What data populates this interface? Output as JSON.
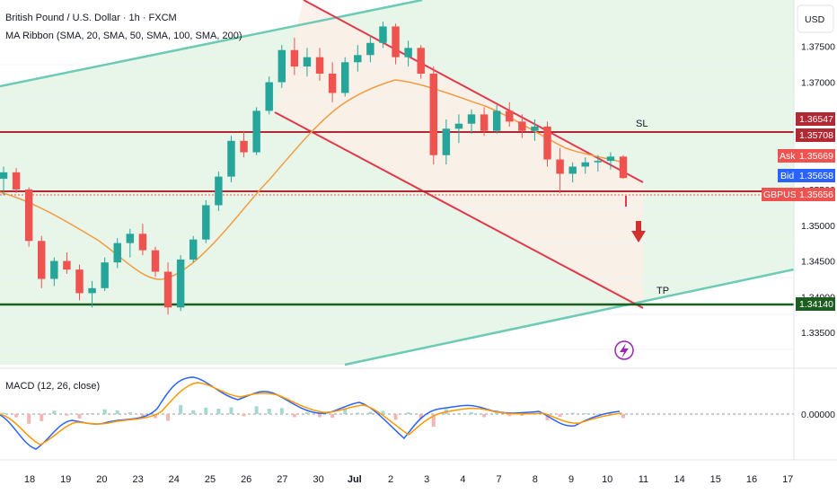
{
  "header": {
    "title": "British Pound / U.S. Dollar · 1h · FXCM",
    "indicator": "MA Ribbon (SMA, 20, SMA, 50, SMA, 100, SMA, 200)",
    "currency": "USD"
  },
  "macd": {
    "label": "MACD (12, 26, close)",
    "zero_label": "0.00000"
  },
  "colors": {
    "candle_up": "#26a69a",
    "candle_down": "#ef5350",
    "ma50": "#f39c40",
    "channel": "#e03a4a",
    "sl": "#b22833",
    "tp": "#1b5e20",
    "trend": "#6ccab5",
    "zone": "#e8f5e9",
    "macd_line": "#2962ff",
    "signal_line": "#ff9800"
  },
  "annotations": {
    "sl": "SL",
    "tp": "TP"
  },
  "tags": {
    "sl_high": "1.36547",
    "sl": "1.35708",
    "ask_label": "Ask",
    "ask": "1.35669",
    "bid_label": "Bid",
    "bid": "1.35658",
    "symbol_label": "GBPUSD",
    "last": "1.35656",
    "tp": "1.34140"
  },
  "icons": {
    "arrow": "down-arrow-icon",
    "flash": "flash-icon"
  },
  "chart_data": {
    "type": "candlestick",
    "title": "British Pound / U.S. Dollar · 1h · FXCM",
    "y_ticks": [
      1.375,
      1.37,
      1.365,
      1.36,
      1.355,
      1.35,
      1.345,
      1.34,
      1.335
    ],
    "y_tick_labels": [
      "1.37500",
      "1.37000",
      "",
      "",
      "1.35500",
      "1.35000",
      "1.34500",
      "1.34000",
      "1.33500"
    ],
    "ylim": [
      1.3305,
      1.3815
    ],
    "x_ticks": [
      "18",
      "19",
      "20",
      "23",
      "24",
      "25",
      "26",
      "27",
      "30",
      "Jul",
      "2",
      "3",
      "4",
      "7",
      "8",
      "9",
      "10",
      "11",
      "14",
      "15",
      "16",
      "17"
    ],
    "levels": {
      "sl": 1.35708,
      "tp": 1.3414,
      "last": 1.35656
    },
    "channel": {
      "upper": [
        [
          6.3,
          1.3815
        ],
        [
          16.4,
          1.3565
        ]
      ],
      "lower": [
        [
          6.8,
          1.3623
        ],
        [
          16.4,
          1.3412
        ]
      ]
    },
    "trendlines": {
      "upper": [
        [
          -0.5,
          1.3728
        ],
        [
          10.7,
          1.3817
        ]
      ],
      "lower": [
        [
          8.7,
          1.3315
        ],
        [
          21.2,
          1.3455
        ]
      ]
    },
    "candles": [
      [
        1.3565,
        1.3582,
        1.3542,
        1.3574
      ],
      [
        1.3574,
        1.358,
        1.3545,
        1.355
      ],
      [
        1.355,
        1.3553,
        1.347,
        1.3478
      ],
      [
        1.3478,
        1.3485,
        1.3412,
        1.3425
      ],
      [
        1.3425,
        1.3455,
        1.3415,
        1.345
      ],
      [
        1.345,
        1.3462,
        1.3432,
        1.3438
      ],
      [
        1.3438,
        1.3445,
        1.3395,
        1.3405
      ],
      [
        1.3405,
        1.3422,
        1.3385,
        1.3412
      ],
      [
        1.3412,
        1.3455,
        1.3408,
        1.3448
      ],
      [
        1.3448,
        1.3482,
        1.344,
        1.3475
      ],
      [
        1.3475,
        1.3495,
        1.3455,
        1.3488
      ],
      [
        1.3488,
        1.3502,
        1.3458,
        1.3465
      ],
      [
        1.3465,
        1.347,
        1.3428,
        1.3435
      ],
      [
        1.3435,
        1.3448,
        1.3375,
        1.3385
      ],
      [
        1.3385,
        1.3458,
        1.338,
        1.3452
      ],
      [
        1.3452,
        1.3485,
        1.3448,
        1.348
      ],
      [
        1.348,
        1.3535,
        1.3475,
        1.3528
      ],
      [
        1.3528,
        1.3575,
        1.352,
        1.3568
      ],
      [
        1.3568,
        1.3625,
        1.356,
        1.3618
      ],
      [
        1.3618,
        1.3632,
        1.3595,
        1.3602
      ],
      [
        1.3602,
        1.3665,
        1.3598,
        1.366
      ],
      [
        1.366,
        1.3708,
        1.3655,
        1.37
      ],
      [
        1.37,
        1.3752,
        1.3692,
        1.3745
      ],
      [
        1.3745,
        1.3762,
        1.371,
        1.3722
      ],
      [
        1.3722,
        1.3748,
        1.3708,
        1.3735
      ],
      [
        1.3735,
        1.3748,
        1.3702,
        1.3712
      ],
      [
        1.3712,
        1.3728,
        1.3672,
        1.3685
      ],
      [
        1.3685,
        1.3735,
        1.368,
        1.3728
      ],
      [
        1.3728,
        1.3752,
        1.3715,
        1.3738
      ],
      [
        1.3738,
        1.3765,
        1.3728,
        1.3755
      ],
      [
        1.3755,
        1.3785,
        1.3748,
        1.3778
      ],
      [
        1.3778,
        1.3782,
        1.3725,
        1.3735
      ],
      [
        1.3735,
        1.3758,
        1.3722,
        1.3748
      ],
      [
        1.3748,
        1.3752,
        1.3705,
        1.3712
      ],
      [
        1.3712,
        1.3722,
        1.3585,
        1.3598
      ],
      [
        1.3598,
        1.3648,
        1.3585,
        1.3635
      ],
      [
        1.3635,
        1.3655,
        1.3615,
        1.3642
      ],
      [
        1.3642,
        1.3662,
        1.3628,
        1.3655
      ],
      [
        1.3655,
        1.3665,
        1.3625,
        1.3632
      ],
      [
        1.3632,
        1.3668,
        1.3628,
        1.366
      ],
      [
        1.366,
        1.3672,
        1.3638,
        1.3645
      ],
      [
        1.3645,
        1.3655,
        1.3622,
        1.3632
      ],
      [
        1.3632,
        1.3648,
        1.3618,
        1.3638
      ],
      [
        1.3638,
        1.3645,
        1.3582,
        1.3592
      ],
      [
        1.3592,
        1.3608,
        1.3545,
        1.3572
      ],
      [
        1.3572,
        1.3588,
        1.356,
        1.3582
      ],
      [
        1.3582,
        1.3595,
        1.3572,
        1.3588
      ],
      [
        1.3588,
        1.3598,
        1.3575,
        1.359
      ],
      [
        1.359,
        1.3602,
        1.3578,
        1.3596
      ],
      [
        1.3596,
        1.3598,
        1.3565,
        1.3566
      ]
    ]
  }
}
